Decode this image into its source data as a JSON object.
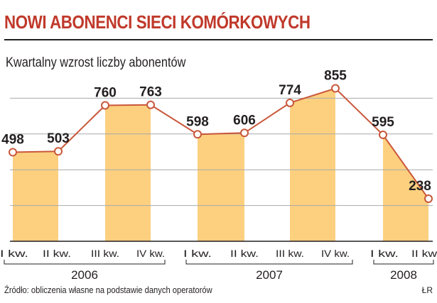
{
  "header": {
    "title": "NOWI ABONENCI SIECI KOMÓRKOWYCH",
    "subtitle": "Kwartalny wzrost liczby abonentów"
  },
  "footer": {
    "source": "Źródło: obliczenia własne na podstawie danych operatorów",
    "signature": "ŁR"
  },
  "colors": {
    "title": "#c0392b",
    "line": "#c9573a",
    "area_fill": "#fcd07f",
    "marker_fill": "#ffffff",
    "grid": "#a7a9ac",
    "text": "#231f20"
  },
  "chart_data": {
    "type": "area",
    "categories": [
      "I kw.",
      "II kw.",
      "III kw.",
      "IV kw.",
      "I kw.",
      "II kw.",
      "III kw.",
      "IV kw.",
      "I kw.",
      "II kw."
    ],
    "years": [
      {
        "label": "2006",
        "quarters": [
          0,
          1,
          2,
          3
        ]
      },
      {
        "label": "2007",
        "quarters": [
          4,
          5,
          6,
          7
        ]
      },
      {
        "label": "2008",
        "quarters": [
          8,
          9
        ]
      }
    ],
    "values": [
      498,
      503,
      760,
      763,
      598,
      606,
      774,
      855,
      595,
      238
    ],
    "data_labels": [
      "498",
      "503",
      "760",
      "763",
      "598",
      "606",
      "774",
      "855",
      "595",
      "238"
    ],
    "shaded_pairs": [
      [
        0,
        1
      ],
      [
        2,
        3
      ],
      [
        4,
        5
      ],
      [
        6,
        7
      ],
      [
        8,
        9
      ]
    ],
    "ylim": [
      0,
      1000
    ],
    "grid": true,
    "gridlines": [
      200,
      400,
      600,
      800
    ],
    "legend": "none"
  }
}
